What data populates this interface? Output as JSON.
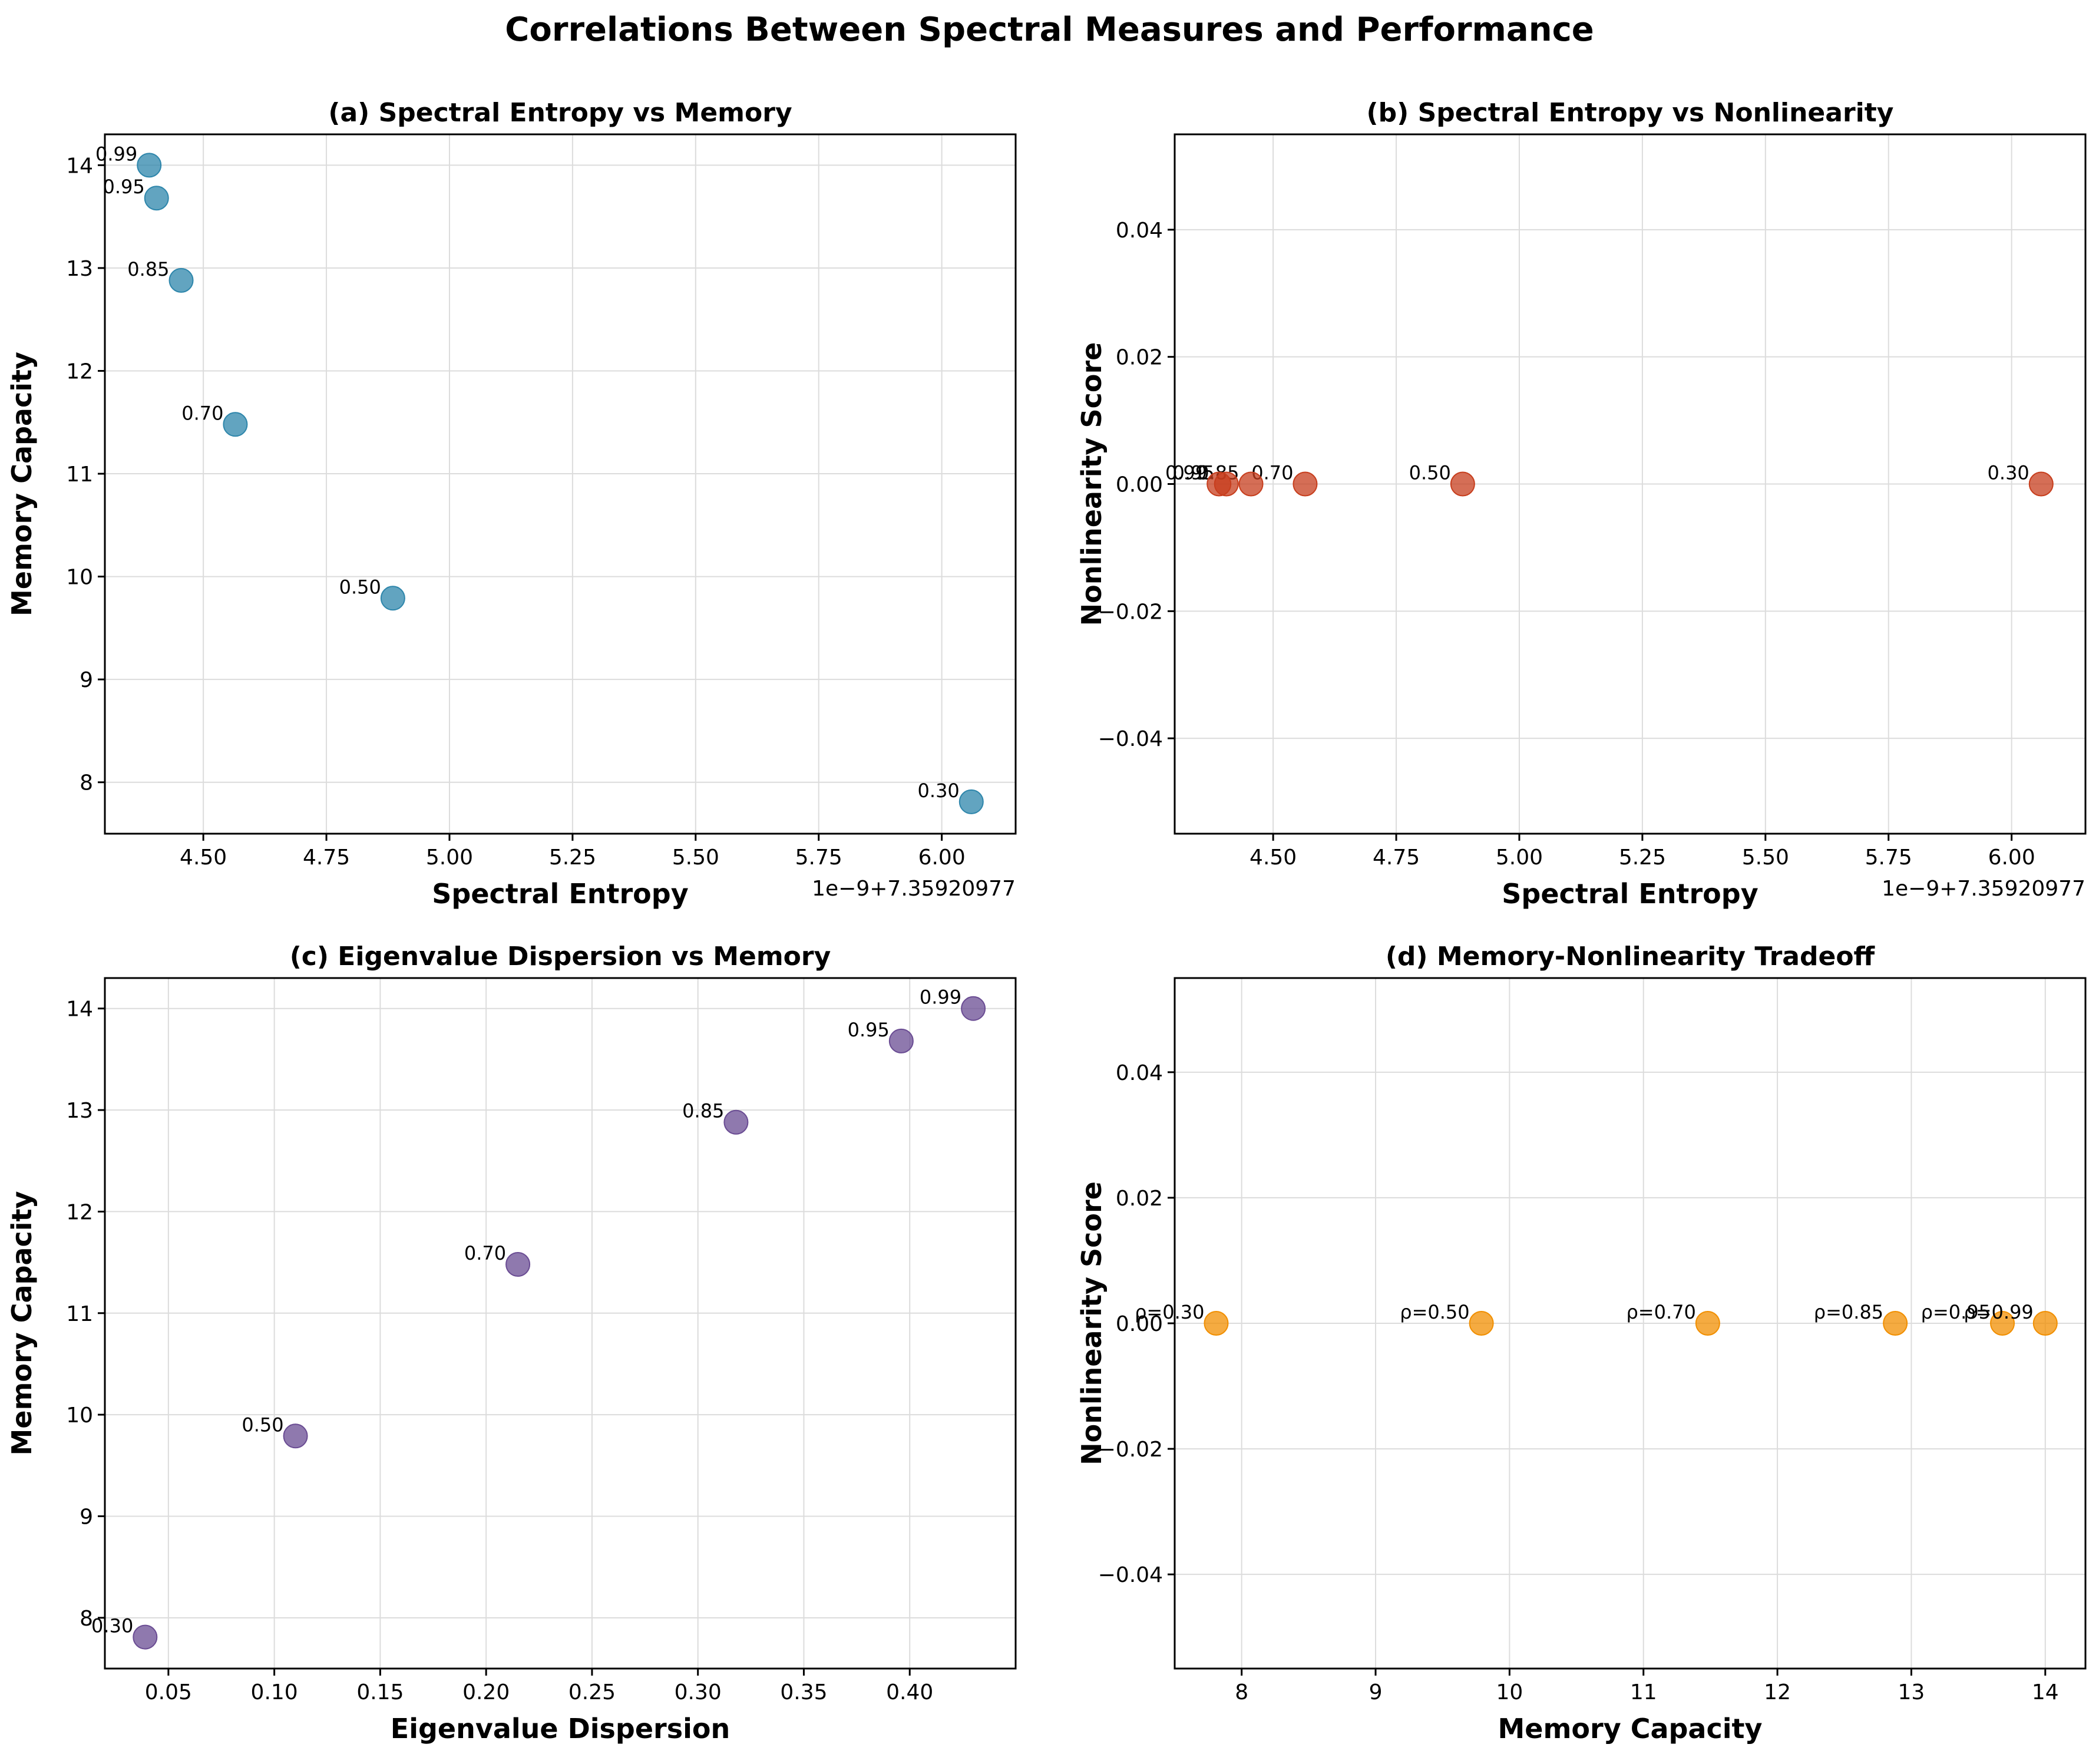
{
  "figure_title": "Correlations Between Spectral Measures and Performance",
  "chart_data": [
    {
      "type": "scatter",
      "title": "(a) Spectral Entropy vs Memory",
      "xlabel": "Spectral Entropy",
      "ylabel": "Memory Capacity",
      "x_offset_text": "1e−9+7.35920977",
      "color": "#2E86AB",
      "xlim": [
        4.3,
        6.15
      ],
      "ylim": [
        7.5,
        14.3
      ],
      "grid": true,
      "xticks": [
        4.5,
        4.75,
        5.0,
        5.25,
        5.5,
        5.75,
        6.0
      ],
      "xtick_labels": [
        "4.50",
        "4.75",
        "5.00",
        "5.25",
        "5.50",
        "5.75",
        "6.00"
      ],
      "yticks": [
        8,
        9,
        10,
        11,
        12,
        13,
        14
      ],
      "ytick_labels": [
        "8",
        "9",
        "10",
        "11",
        "12",
        "13",
        "14"
      ],
      "points": [
        {
          "x": 6.06,
          "y": 7.81,
          "label": "0.30"
        },
        {
          "x": 4.885,
          "y": 9.79,
          "label": "0.50"
        },
        {
          "x": 4.565,
          "y": 11.48,
          "label": "0.70"
        },
        {
          "x": 4.455,
          "y": 12.88,
          "label": "0.85"
        },
        {
          "x": 4.405,
          "y": 13.68,
          "label": "0.95"
        },
        {
          "x": 4.39,
          "y": 14.0,
          "label": "0.99"
        }
      ]
    },
    {
      "type": "scatter",
      "title": "(b) Spectral Entropy vs Nonlinearity",
      "xlabel": "Spectral Entropy",
      "ylabel": "Nonlinearity Score",
      "x_offset_text": "1e−9+7.35920977",
      "color": "#C73E1D",
      "xlim": [
        4.3,
        6.15
      ],
      "ylim": [
        -0.055,
        0.055
      ],
      "grid": true,
      "xticks": [
        4.5,
        4.75,
        5.0,
        5.25,
        5.5,
        5.75,
        6.0
      ],
      "xtick_labels": [
        "4.50",
        "4.75",
        "5.00",
        "5.25",
        "5.50",
        "5.75",
        "6.00"
      ],
      "yticks": [
        -0.04,
        -0.02,
        0.0,
        0.02,
        0.04
      ],
      "ytick_labels": [
        "−0.04",
        "−0.02",
        "0.00",
        "0.02",
        "0.04"
      ],
      "points": [
        {
          "x": 6.06,
          "y": 0.0,
          "label": "0.30"
        },
        {
          "x": 4.885,
          "y": 0.0,
          "label": "0.50"
        },
        {
          "x": 4.565,
          "y": 0.0,
          "label": "0.70"
        },
        {
          "x": 4.455,
          "y": 0.0,
          "label": "0.85"
        },
        {
          "x": 4.405,
          "y": 0.0,
          "label": "0.95"
        },
        {
          "x": 4.39,
          "y": 0.0,
          "label": "0.99"
        }
      ]
    },
    {
      "type": "scatter",
      "title": "(c) Eigenvalue Dispersion vs Memory",
      "xlabel": "Eigenvalue Dispersion",
      "ylabel": "Memory Capacity",
      "x_offset_text": "",
      "color": "#6A4C93",
      "xlim": [
        0.02,
        0.45
      ],
      "ylim": [
        7.5,
        14.3
      ],
      "grid": true,
      "xticks": [
        0.05,
        0.1,
        0.15,
        0.2,
        0.25,
        0.3,
        0.35,
        0.4
      ],
      "xtick_labels": [
        "0.05",
        "0.10",
        "0.15",
        "0.20",
        "0.25",
        "0.30",
        "0.35",
        "0.40"
      ],
      "yticks": [
        8,
        9,
        10,
        11,
        12,
        13,
        14
      ],
      "ytick_labels": [
        "8",
        "9",
        "10",
        "11",
        "12",
        "13",
        "14"
      ],
      "points": [
        {
          "x": 0.039,
          "y": 7.81,
          "label": "0.30"
        },
        {
          "x": 0.11,
          "y": 9.79,
          "label": "0.50"
        },
        {
          "x": 0.215,
          "y": 11.48,
          "label": "0.70"
        },
        {
          "x": 0.318,
          "y": 12.88,
          "label": "0.85"
        },
        {
          "x": 0.396,
          "y": 13.68,
          "label": "0.95"
        },
        {
          "x": 0.43,
          "y": 14.0,
          "label": "0.99"
        }
      ]
    },
    {
      "type": "scatter",
      "title": "(d) Memory-Nonlinearity Tradeoff",
      "xlabel": "Memory Capacity",
      "ylabel": "Nonlinearity Score",
      "x_offset_text": "",
      "color": "#F18F01",
      "xlim": [
        7.5,
        14.3
      ],
      "ylim": [
        -0.055,
        0.055
      ],
      "grid": true,
      "xticks": [
        8,
        9,
        10,
        11,
        12,
        13,
        14
      ],
      "xtick_labels": [
        "8",
        "9",
        "10",
        "11",
        "12",
        "13",
        "14"
      ],
      "yticks": [
        -0.04,
        -0.02,
        0.0,
        0.02,
        0.04
      ],
      "ytick_labels": [
        "−0.04",
        "−0.02",
        "0.00",
        "0.02",
        "0.04"
      ],
      "points": [
        {
          "x": 7.81,
          "y": 0.0,
          "label": "ρ=0.30"
        },
        {
          "x": 9.79,
          "y": 0.0,
          "label": "ρ=0.50"
        },
        {
          "x": 11.48,
          "y": 0.0,
          "label": "ρ=0.70"
        },
        {
          "x": 12.88,
          "y": 0.0,
          "label": "ρ=0.85"
        },
        {
          "x": 13.68,
          "y": 0.0,
          "label": "ρ=0.95"
        },
        {
          "x": 14.0,
          "y": 0.0,
          "label": "ρ=0.99"
        }
      ]
    }
  ]
}
